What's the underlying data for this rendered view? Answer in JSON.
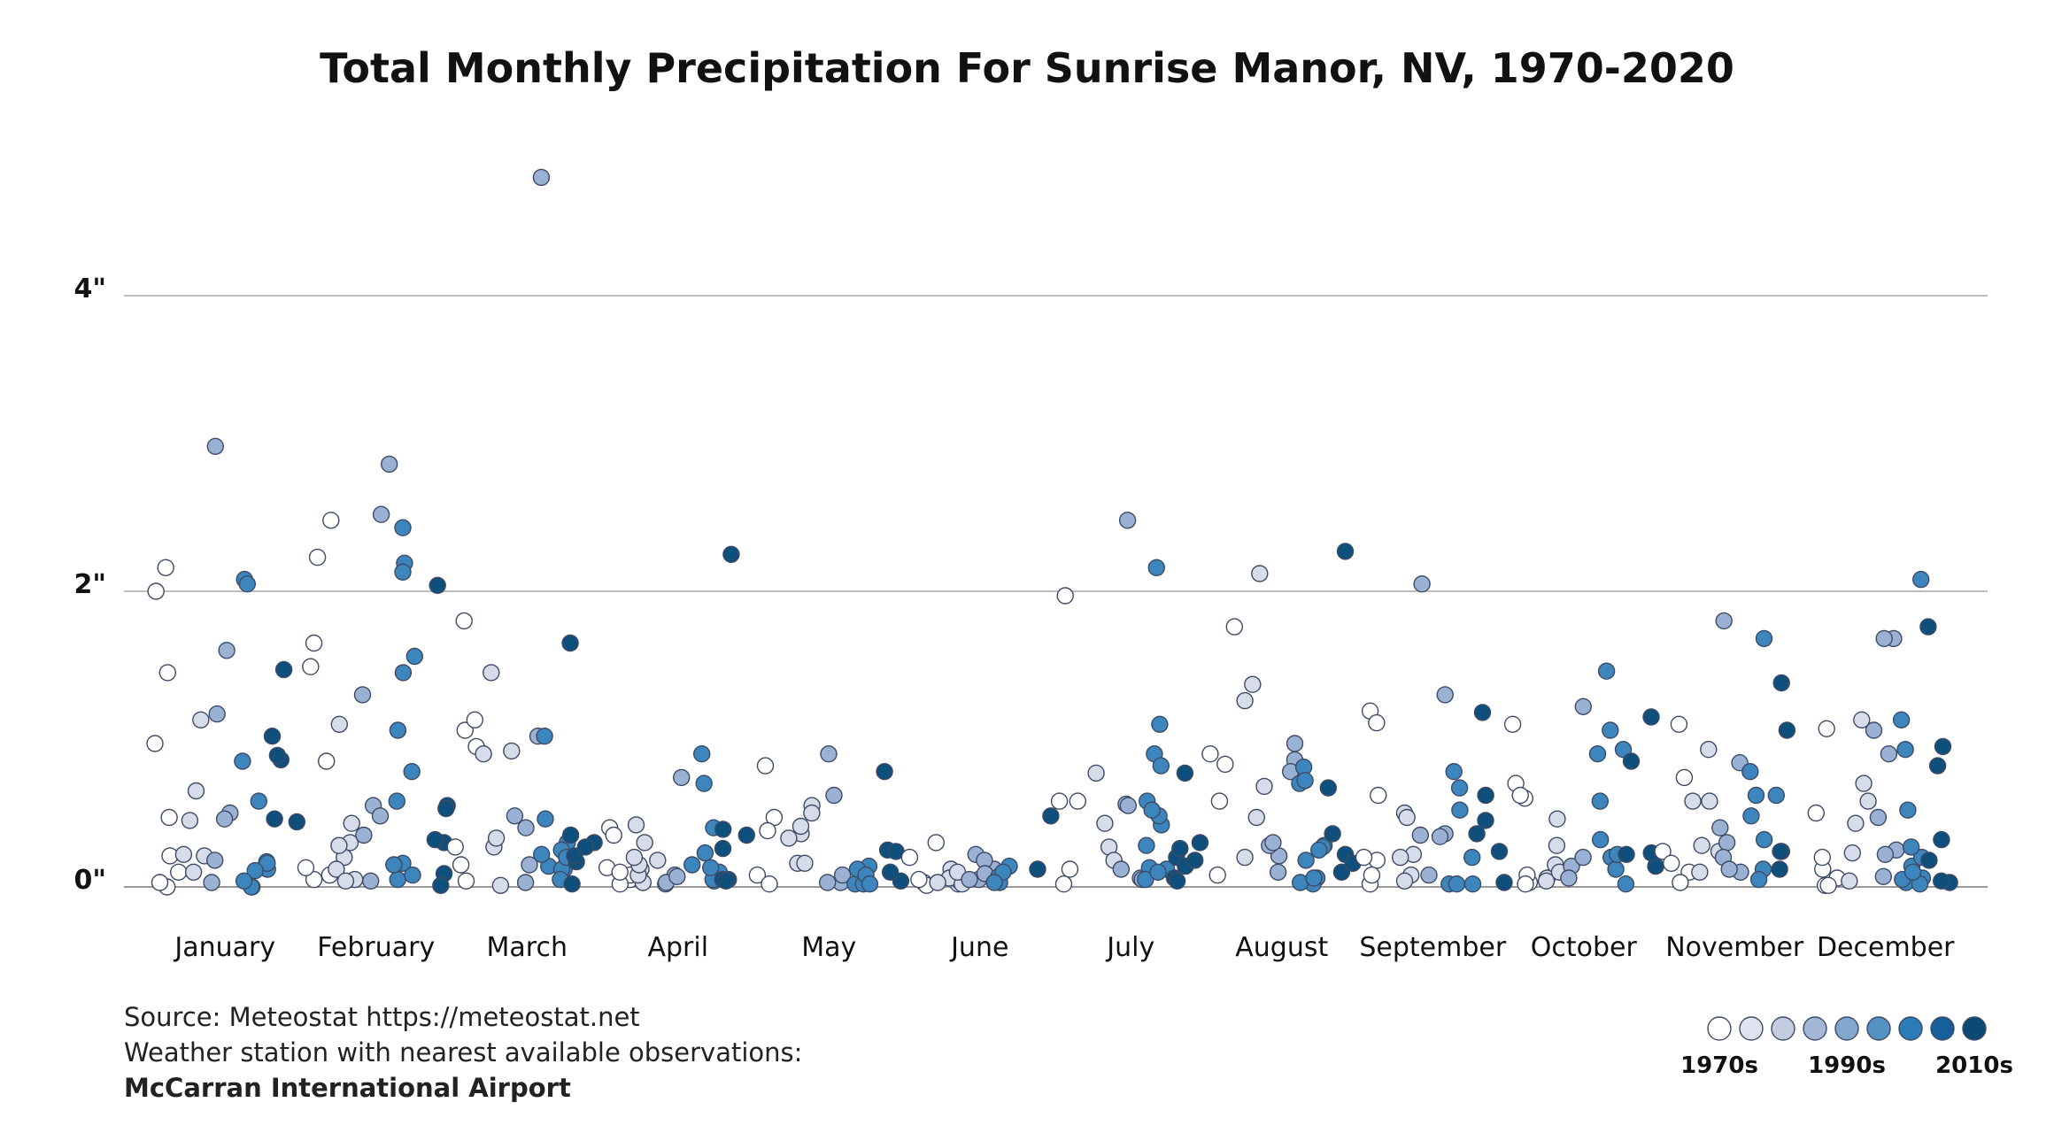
{
  "chart_data": {
    "type": "scatter",
    "title": "Total Monthly Precipitation For Sunrise Manor, NV, 1970-2020",
    "ylim": [
      0,
      4.8
    ],
    "yticks": [
      0,
      2,
      4
    ],
    "ytick_labels": [
      "0\"",
      "2\"",
      "4\""
    ],
    "grid": true,
    "categories": [
      "January",
      "February",
      "March",
      "April",
      "May",
      "June",
      "July",
      "August",
      "September",
      "October",
      "November",
      "December"
    ],
    "legend": {
      "position": "bottom-right",
      "labels": [
        "1970s",
        "1990s",
        "2010s"
      ],
      "colors": [
        "#ffffff",
        "#dfe3f0",
        "#c4cce2",
        "#a3b6d6",
        "#83a6cf",
        "#5592c4",
        "#2a7bb6",
        "#15609b",
        "#0c4a74"
      ]
    },
    "decade_colors": {
      "1970s": "#ffffff",
      "1980s": "#d7dceb",
      "1990s": "#9bb1d4",
      "2000s": "#3c86bd",
      "2010s": "#0f4f7c"
    },
    "series": [
      {
        "name": "January",
        "values": [
          {
            "decade": "1970s",
            "y": [
              0.0,
              0.47,
              2.0,
              0.03,
              2.16,
              1.45,
              0.97,
              0.1,
              0.21
            ]
          },
          {
            "decade": "1980s",
            "y": [
              0.1,
              0.45,
              0.21,
              1.13,
              0.22,
              0.65
            ]
          },
          {
            "decade": "1990s",
            "y": [
              1.17,
              0.5,
              0.18,
              1.6,
              0.46,
              2.98,
              0.03
            ]
          },
          {
            "decade": "2000s",
            "y": [
              0.17,
              0.12,
              0.85,
              0.0,
              0.16,
              2.08,
              0.0,
              0.11,
              0.58,
              2.05,
              0.04
            ]
          },
          {
            "decade": "2010s",
            "y": [
              0.44,
              0.86,
              0.46,
              1.47,
              0.89,
              1.02
            ]
          }
        ]
      },
      {
        "name": "February",
        "values": [
          {
            "decade": "1970s",
            "y": [
              0.85,
              0.05,
              1.65,
              0.13,
              2.48,
              1.49,
              0.08,
              2.23
            ]
          },
          {
            "decade": "1980s",
            "y": [
              1.1,
              0.3,
              0.2,
              0.05,
              0.43,
              0.12,
              0.28,
              0.04
            ]
          },
          {
            "decade": "1990s",
            "y": [
              0.35,
              1.3,
              0.55,
              2.52,
              0.48,
              2.86,
              0.04
            ]
          },
          {
            "decade": "2000s",
            "y": [
              0.16,
              2.19,
              2.13,
              1.56,
              1.45,
              2.43,
              0.05,
              0.58,
              0.78,
              0.15,
              1.06,
              0.08
            ]
          },
          {
            "decade": "2010s",
            "y": [
              0.3,
              0.55,
              0.53,
              0.09,
              0.01,
              2.04,
              0.32
            ]
          }
        ]
      },
      {
        "name": "March",
        "values": [
          {
            "decade": "1970s",
            "y": [
              0.27,
              1.8,
              1.06,
              0.15,
              0.04,
              1.13,
              0.95
            ]
          },
          {
            "decade": "1980s",
            "y": [
              1.45,
              0.92,
              0.9,
              0.27,
              0.01,
              0.33
            ]
          },
          {
            "decade": "1990s",
            "y": [
              0.48,
              4.8,
              0.03,
              1.02,
              0.15,
              0.4
            ]
          },
          {
            "decade": "2000s",
            "y": [
              1.02,
              0.12,
              0.3,
              0.14,
              0.22,
              0.46,
              0.12,
              0.25,
              0.05,
              0.2
            ]
          },
          {
            "decade": "2010s",
            "y": [
              0.17,
              0.3,
              0.21,
              0.35,
              0.02,
              1.65,
              0.27
            ]
          }
        ]
      },
      {
        "name": "April",
        "values": [
          {
            "decade": "1970s",
            "y": [
              0.05,
              0.08,
              0.4,
              0.02,
              0.13,
              0.35,
              0.1
            ]
          },
          {
            "decade": "1980s",
            "y": [
              0.42,
              0.3,
              0.12,
              0.03,
              0.18,
              0.08,
              0.15,
              0.2
            ]
          },
          {
            "decade": "1990s",
            "y": [
              0.74,
              0.02,
              0.08,
              0.03,
              0.07
            ]
          },
          {
            "decade": "2000s",
            "y": [
              0.7,
              0.15,
              0.04,
              0.23,
              0.4,
              0.9,
              0.1,
              0.05,
              0.13
            ]
          },
          {
            "decade": "2010s",
            "y": [
              0.05,
              2.25,
              0.26,
              0.35,
              0.39,
              0.05,
              0.04
            ]
          }
        ]
      },
      {
        "name": "May",
        "values": [
          {
            "decade": "1970s",
            "y": [
              0.82,
              0.08,
              0.47,
              0.02,
              0.38
            ]
          },
          {
            "decade": "1980s",
            "y": [
              0.36,
              0.55,
              0.41,
              0.16,
              0.33,
              0.5,
              0.16
            ]
          },
          {
            "decade": "1990s",
            "y": [
              0.9,
              0.03,
              0.62,
              0.03,
              0.08
            ]
          },
          {
            "decade": "2000s",
            "y": [
              0.14,
              0.02,
              0.12,
              0.02,
              0.08,
              0.02
            ]
          },
          {
            "decade": "2010s",
            "y": [
              0.25,
              0.04,
              0.1,
              0.24,
              0.78
            ]
          }
        ]
      },
      {
        "name": "June",
        "values": [
          {
            "decade": "1970s",
            "y": [
              0.2,
              0.3,
              0.03,
              0.01,
              0.05
            ]
          },
          {
            "decade": "1980s",
            "y": [
              0.02,
              0.04,
              0.12,
              0.06,
              0.02,
              0.1,
              0.03
            ]
          },
          {
            "decade": "1990s",
            "y": [
              0.22,
              0.05,
              0.12,
              0.18,
              0.05,
              0.09
            ]
          },
          {
            "decade": "2000s",
            "y": [
              0.07,
              0.03,
              0.14,
              0.1,
              0.03
            ]
          },
          {
            "decade": "2010s",
            "y": [
              0.48,
              0.12
            ]
          }
        ]
      },
      {
        "name": "July",
        "values": [
          {
            "decade": "1970s",
            "y": [
              0.58,
              0.12,
              0.02,
              0.58,
              1.97
            ]
          },
          {
            "decade": "1980s",
            "y": [
              0.27,
              0.77,
              0.18,
              0.43
            ]
          },
          {
            "decade": "1990s",
            "y": [
              2.48,
              0.06,
              0.12,
              0.56,
              0.55,
              0.05
            ]
          },
          {
            "decade": "2000s",
            "y": [
              0.42,
              0.58,
              0.13,
              0.48,
              0.52,
              2.16,
              1.1,
              0.9,
              0.05,
              0.28,
              0.12,
              0.1,
              0.82
            ]
          },
          {
            "decade": "2010s",
            "y": [
              0.3,
              0.2,
              0.14,
              0.26,
              0.77,
              0.06,
              0.04,
              0.18
            ]
          }
        ]
      },
      {
        "name": "August",
        "values": [
          {
            "decade": "1970s",
            "y": [
              1.76,
              0.9,
              0.83,
              0.08,
              0.58
            ]
          },
          {
            "decade": "1980s",
            "y": [
              0.2,
              2.12,
              1.37,
              1.26,
              0.47,
              0.68
            ]
          },
          {
            "decade": "1990s",
            "y": [
              0.97,
              0.1,
              0.86,
              0.78,
              0.21,
              0.28,
              0.3
            ]
          },
          {
            "decade": "2000s",
            "y": [
              0.7,
              0.06,
              0.02,
              0.28,
              0.81,
              0.18,
              0.72,
              0.03,
              0.27,
              0.06,
              0.25
            ]
          },
          {
            "decade": "2010s",
            "y": [
              2.27,
              0.36,
              0.1,
              0.67,
              0.22,
              0.16
            ]
          }
        ]
      },
      {
        "name": "September",
        "values": [
          {
            "decade": "1970s",
            "y": [
              0.62,
              0.02,
              1.19,
              1.11,
              0.18,
              0.2,
              0.08
            ]
          },
          {
            "decade": "1980s",
            "y": [
              0.22,
              0.08,
              0.5,
              0.04,
              0.47,
              0.2
            ]
          },
          {
            "decade": "1990s",
            "y": [
              0.35,
              2.05,
              0.08,
              0.36,
              0.34,
              1.3
            ]
          },
          {
            "decade": "2000s",
            "y": [
              0.52,
              0.2,
              0.67,
              0.02,
              0.02,
              0.02,
              0.78
            ]
          },
          {
            "decade": "2010s",
            "y": [
              1.18,
              0.36,
              0.62,
              0.45,
              0.03,
              0.24
            ]
          }
        ]
      },
      {
        "name": "October",
        "values": [
          {
            "decade": "1970s",
            "y": [
              0.03,
              0.08,
              1.1,
              0.6,
              0.7,
              0.02,
              0.62
            ]
          },
          {
            "decade": "1980s",
            "y": [
              0.06,
              0.15,
              0.28,
              0.04,
              0.46,
              0.1
            ]
          },
          {
            "decade": "1990s",
            "y": [
              1.22,
              0.14,
              0.06,
              0.2
            ]
          },
          {
            "decade": "2000s",
            "y": [
              0.2,
              0.9,
              0.12,
              0.32,
              0.58,
              1.46,
              1.06,
              0.22,
              0.02,
              0.93
            ]
          },
          {
            "decade": "2010s",
            "y": [
              0.85,
              0.22,
              1.15,
              0.14,
              0.23
            ]
          }
        ]
      },
      {
        "name": "November",
        "values": [
          {
            "decade": "1970s",
            "y": [
              0.74,
              1.1,
              0.1,
              0.24,
              0.16,
              0.03
            ]
          },
          {
            "decade": "1980s",
            "y": [
              0.58,
              0.58,
              0.28,
              0.1,
              0.24,
              0.93
            ]
          },
          {
            "decade": "1990s",
            "y": [
              1.8,
              0.84,
              0.1,
              0.4,
              0.3,
              0.2,
              0.12
            ]
          },
          {
            "decade": "2000s",
            "y": [
              0.78,
              0.62,
              0.12,
              0.32,
              1.68,
              0.62,
              0.48,
              0.05
            ]
          },
          {
            "decade": "2010s",
            "y": [
              0.12,
              1.38,
              0.24,
              1.06,
              0.24
            ]
          }
        ]
      },
      {
        "name": "December",
        "values": [
          {
            "decade": "1970s",
            "y": [
              0.12,
              0.5,
              0.01,
              0.2,
              0.06,
              1.07,
              0.01
            ]
          },
          {
            "decade": "1980s",
            "y": [
              0.58,
              1.13,
              0.23,
              0.7,
              0.43,
              0.04
            ]
          },
          {
            "decade": "1990s",
            "y": [
              1.68,
              0.47,
              0.9,
              0.07,
              1.68,
              0.25,
              1.06,
              0.22
            ]
          },
          {
            "decade": "2000s",
            "y": [
              0.14,
              0.03,
              0.06,
              0.02,
              0.93,
              2.08,
              0.05,
              0.1,
              0.2,
              1.13,
              0.27,
              0.52
            ]
          },
          {
            "decade": "2010s",
            "y": [
              1.76,
              0.32,
              0.03,
              0.82,
              0.18,
              0.95,
              0.04
            ]
          }
        ]
      }
    ]
  },
  "footer": {
    "source": "Source: Meteostat https://meteostat.net",
    "station": "Weather station with nearest available observations:",
    "airport": "McCarran International Airport"
  }
}
